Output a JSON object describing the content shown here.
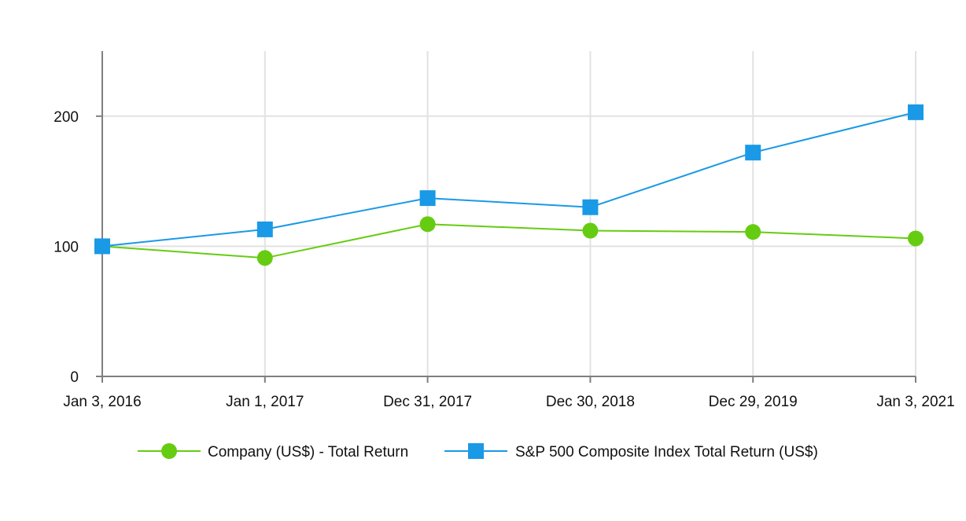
{
  "chart_data": {
    "type": "line",
    "title": "",
    "xlabel": "",
    "ylabel": "",
    "categories": [
      "Jan 3, 2016",
      "Jan 1, 2017",
      "Dec 31, 2017",
      "Dec 30, 2018",
      "Dec 29, 2019",
      "Jan 3, 2021"
    ],
    "ylim": [
      0,
      250
    ],
    "yticks": [
      0,
      100,
      200
    ],
    "grid": true,
    "legend_position": "bottom-center",
    "series": [
      {
        "name": "Company (US$) - Total Return",
        "marker": "circle",
        "color": "#66CC11",
        "values": [
          100,
          91,
          117,
          112,
          111,
          106
        ]
      },
      {
        "name": "S&P 500 Composite Index Total Return (US$)",
        "marker": "square",
        "color": "#1A99E6",
        "values": [
          100,
          113,
          137,
          130,
          172,
          203
        ]
      }
    ]
  }
}
